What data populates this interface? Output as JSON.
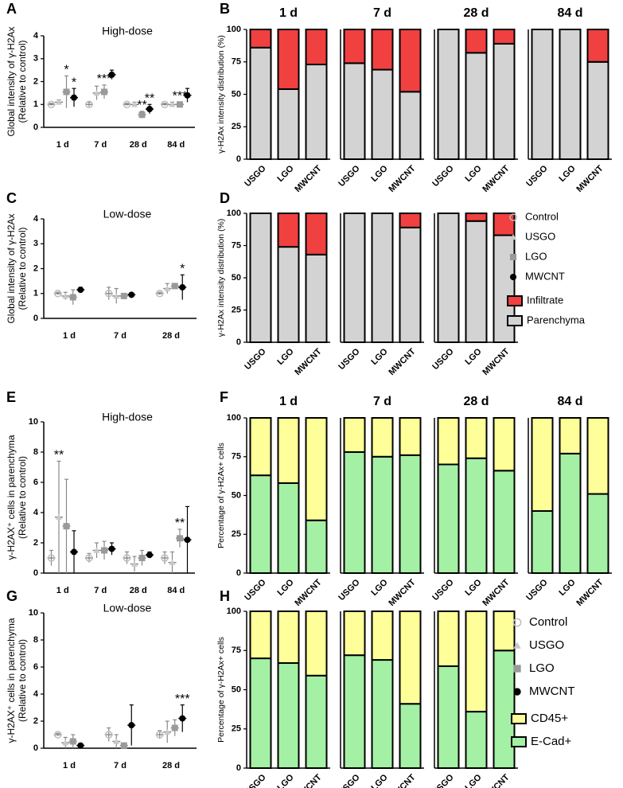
{
  "chart_data": [
    {
      "type": "dot",
      "panel_label": "A",
      "title": "High-dose",
      "ylabel": [
        "Global intensity of γ-H2Ax",
        "(Relative to control)"
      ],
      "ylim": [
        0,
        4
      ],
      "yticks": [
        0,
        1,
        2,
        3,
        4
      ],
      "categories": [
        "1 d",
        "7 d",
        "28 d",
        "84 d"
      ],
      "series": [
        {
          "name": "Control",
          "color": "#bdbdbd",
          "marker": "open-circle",
          "values": [
            1.0,
            1.0,
            1.0,
            1.0
          ],
          "errors": [
            0.05,
            0.1,
            0.05,
            0.05
          ]
        },
        {
          "name": "USGO",
          "color": "#c8c8c8",
          "marker": "triangle",
          "values": [
            1.1,
            1.5,
            1.0,
            1.0
          ],
          "errors": [
            0.1,
            0.3,
            0.1,
            0.1
          ]
        },
        {
          "name": "LGO",
          "color": "#9a9a9a",
          "marker": "square",
          "values": [
            1.55,
            1.55,
            0.55,
            1.0
          ],
          "errors": [
            0.7,
            0.3,
            0.15,
            0.1
          ]
        },
        {
          "name": "MWCNT",
          "color": "#000000",
          "marker": "circle",
          "values": [
            1.3,
            2.3,
            0.8,
            1.4
          ],
          "errors": [
            0.4,
            0.2,
            0.2,
            0.3
          ]
        }
      ],
      "annotations": [
        {
          "text": "*",
          "category": "1 d",
          "series": "LGO"
        },
        {
          "text": "*",
          "category": "1 d",
          "series": "MWCNT"
        },
        {
          "text": "***",
          "category": "7 d",
          "series": "LGO"
        },
        {
          "text": "**",
          "category": "28 d",
          "series": "LGO"
        },
        {
          "text": "**",
          "category": "28 d",
          "series": "MWCNT"
        },
        {
          "text": "***",
          "category": "84 d",
          "series": "LGO"
        }
      ]
    },
    {
      "type": "stacked-bar",
      "panel_label": "B",
      "ylabel": "γ-H2Ax intensity distribution (%)",
      "ylim": [
        0,
        100
      ],
      "yticks": [
        0,
        25,
        50,
        75,
        100
      ],
      "facets": [
        "1 d",
        "7 d",
        "28 d",
        "84 d"
      ],
      "categories": [
        "USGO",
        "LGO",
        "MWCNT"
      ],
      "series": [
        {
          "name": "Parenchyma",
          "color": "#d3d3d3",
          "values": [
            [
              86,
              54,
              73
            ],
            [
              74,
              69,
              52
            ],
            [
              100,
              82,
              89
            ],
            [
              100,
              100,
              75
            ]
          ]
        },
        {
          "name": "Infiltrate",
          "color": "#f04040",
          "values": [
            [
              14,
              46,
              27
            ],
            [
              26,
              31,
              48
            ],
            [
              0,
              18,
              11
            ],
            [
              0,
              0,
              25
            ]
          ]
        }
      ]
    },
    {
      "type": "dot",
      "panel_label": "C",
      "title": "Low-dose",
      "ylabel": [
        "Global intensity of γ-H2Ax",
        "(Relative to control)"
      ],
      "ylim": [
        0,
        4
      ],
      "yticks": [
        0,
        1,
        2,
        3,
        4
      ],
      "categories": [
        "1 d",
        "7 d",
        "28 d"
      ],
      "series": [
        {
          "name": "Control",
          "color": "#bdbdbd",
          "marker": "open-circle",
          "values": [
            1.0,
            1.0,
            1.0
          ],
          "errors": [
            0.05,
            0.25,
            0.05
          ]
        },
        {
          "name": "USGO",
          "color": "#c8c8c8",
          "marker": "triangle",
          "values": [
            0.9,
            0.9,
            1.2
          ],
          "errors": [
            0.15,
            0.3,
            0.2
          ]
        },
        {
          "name": "LGO",
          "color": "#9a9a9a",
          "marker": "square",
          "values": [
            0.85,
            0.9,
            1.3
          ],
          "errors": [
            0.3,
            0.1,
            0.05
          ]
        },
        {
          "name": "MWCNT",
          "color": "#000000",
          "marker": "circle",
          "values": [
            1.15,
            0.95,
            1.25
          ],
          "errors": [
            0.1,
            0.05,
            0.5
          ]
        }
      ],
      "annotations": [
        {
          "text": "*",
          "category": "28 d",
          "series": "MWCNT"
        }
      ]
    },
    {
      "type": "stacked-bar",
      "panel_label": "D",
      "ylabel": "γ-H2Ax intensity distribution (%)",
      "ylim": [
        0,
        100
      ],
      "yticks": [
        0,
        25,
        50,
        75,
        100
      ],
      "categories": [
        "USGO",
        "LGO",
        "MWCNT"
      ],
      "legend": "right",
      "series": [
        {
          "name": "Parenchyma",
          "color": "#d3d3d3",
          "values": [
            [
              100,
              74,
              68
            ],
            [
              100,
              100,
              89
            ],
            [
              100,
              94,
              83
            ]
          ]
        },
        {
          "name": "Infiltrate",
          "color": "#f04040",
          "values": [
            [
              0,
              26,
              32
            ],
            [
              0,
              0,
              11
            ],
            [
              0,
              6,
              17
            ]
          ]
        }
      ]
    },
    {
      "type": "dot",
      "panel_label": "E",
      "title": "High-dose",
      "ylabel": [
        "γ-H2AX⁺ cells in parenchyma",
        "(Relative to control)"
      ],
      "ylim": [
        0,
        10
      ],
      "yticks": [
        0,
        2,
        4,
        6,
        8,
        10
      ],
      "categories": [
        "1 d",
        "7 d",
        "28 d",
        "84 d"
      ],
      "series": [
        {
          "name": "Control",
          "color": "#bdbdbd",
          "marker": "open-circle",
          "values": [
            1.0,
            1.0,
            1.0,
            1.0
          ],
          "errors": [
            0.5,
            0.3,
            0.4,
            0.4
          ]
        },
        {
          "name": "USGO",
          "color": "#c8c8c8",
          "marker": "triangle",
          "values": [
            3.7,
            1.5,
            0.6,
            0.7
          ],
          "errors": [
            3.7,
            0.5,
            0.5,
            0.7
          ]
        },
        {
          "name": "LGO",
          "color": "#9a9a9a",
          "marker": "square",
          "values": [
            3.1,
            1.5,
            1.0,
            2.3
          ],
          "errors": [
            3.1,
            0.6,
            0.5,
            0.6
          ]
        },
        {
          "name": "MWCNT",
          "color": "#000000",
          "marker": "circle",
          "values": [
            1.4,
            1.6,
            1.2,
            2.2
          ],
          "errors": [
            1.4,
            0.4,
            0.2,
            2.2
          ]
        }
      ],
      "annotations": [
        {
          "text": "**",
          "category": "1 d",
          "series": "USGO"
        },
        {
          "text": "**",
          "category": "84 d",
          "series": "LGO"
        }
      ]
    },
    {
      "type": "stacked-bar",
      "panel_label": "F",
      "ylabel": "Percentage of γ-H2Ax+ cells",
      "ylim": [
        0,
        100
      ],
      "yticks": [
        0,
        25,
        50,
        75,
        100
      ],
      "facets": [
        "1 d",
        "7 d",
        "28 d",
        "84 d"
      ],
      "categories": [
        "USGO",
        "LGO",
        "MWCNT"
      ],
      "series": [
        {
          "name": "E-Cad+",
          "color": "#a4f0a4",
          "values": [
            [
              63,
              58,
              34
            ],
            [
              78,
              75,
              76
            ],
            [
              70,
              74,
              66
            ],
            [
              40,
              77,
              51
            ]
          ]
        },
        {
          "name": "CD45+",
          "color": "#ffff99",
          "values": [
            [
              37,
              42,
              66
            ],
            [
              22,
              25,
              24
            ],
            [
              30,
              26,
              34
            ],
            [
              60,
              23,
              49
            ]
          ]
        }
      ]
    },
    {
      "type": "dot",
      "panel_label": "G",
      "title": "Low-dose",
      "ylabel": [
        "γ-H2AX⁺ cells in parenchyma",
        "(Relative to control)"
      ],
      "ylim": [
        0,
        10
      ],
      "yticks": [
        0,
        2,
        4,
        6,
        8,
        10
      ],
      "categories": [
        "1 d",
        "7 d",
        "28 d"
      ],
      "series": [
        {
          "name": "Control",
          "color": "#bdbdbd",
          "marker": "open-circle",
          "values": [
            1.0,
            1.0,
            1.0
          ],
          "errors": [
            0.1,
            0.5,
            0.3
          ]
        },
        {
          "name": "USGO",
          "color": "#c8c8c8",
          "marker": "triangle",
          "values": [
            0.4,
            0.5,
            1.2
          ],
          "errors": [
            0.4,
            0.5,
            0.8
          ]
        },
        {
          "name": "LGO",
          "color": "#9a9a9a",
          "marker": "square",
          "values": [
            0.5,
            0.2,
            1.5
          ],
          "errors": [
            0.5,
            0.1,
            0.6
          ]
        },
        {
          "name": "MWCNT",
          "color": "#000000",
          "marker": "circle",
          "values": [
            0.2,
            1.7,
            2.2
          ],
          "errors": [
            0.1,
            1.5,
            1.0
          ]
        }
      ],
      "annotations": [
        {
          "text": "***",
          "category": "28 d",
          "series": "MWCNT"
        }
      ]
    },
    {
      "type": "stacked-bar",
      "panel_label": "H",
      "ylabel": "Percentage of γ-H2Ax+ cells",
      "ylim": [
        0,
        100
      ],
      "yticks": [
        0,
        25,
        50,
        75,
        100
      ],
      "categories": [
        "USGO",
        "LGO",
        "MWCNT"
      ],
      "legend": "right",
      "series": [
        {
          "name": "E-Cad+",
          "color": "#a4f0a4",
          "values": [
            [
              70,
              67,
              59
            ],
            [
              72,
              69,
              41
            ],
            [
              65,
              36,
              75
            ]
          ]
        },
        {
          "name": "CD45+",
          "color": "#ffff99",
          "values": [
            [
              30,
              33,
              41
            ],
            [
              28,
              31,
              59
            ],
            [
              35,
              64,
              25
            ]
          ]
        }
      ]
    }
  ]
}
